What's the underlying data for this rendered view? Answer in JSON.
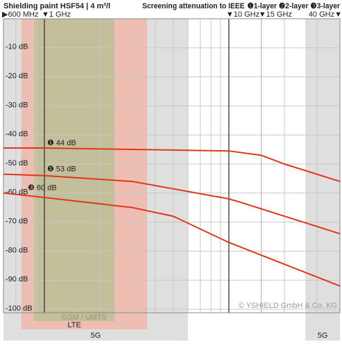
{
  "chart_data": {
    "type": "line",
    "title": "Shielding paint HSF54 | 4 m²/l",
    "legend_title": "Screening attenuation to IEEE",
    "log_x": true,
    "grid": true,
    "xlim": [
      0.6,
      40
    ],
    "ylim": [
      -100,
      0
    ],
    "xticks": [
      {
        "value": 0.6,
        "label": "▶600 MHz"
      },
      {
        "value": 1,
        "label": "▼1 GHz"
      },
      {
        "value": 10,
        "label": "▼10 GHz"
      },
      {
        "value": 15,
        "label": "▼15 GHz"
      },
      {
        "value": 40,
        "label": "40 GHz▼"
      }
    ],
    "xgrid": [
      0.7,
      0.8,
      0.9,
      1,
      2,
      3,
      4,
      5,
      6,
      7,
      8,
      9,
      10,
      20,
      30
    ],
    "yticks": [
      {
        "value": -10,
        "label": "-10 dB"
      },
      {
        "value": -20,
        "label": "-20 dB"
      },
      {
        "value": -30,
        "label": "-30 dB"
      },
      {
        "value": -40,
        "label": "-40 dB"
      },
      {
        "value": -50,
        "label": "-50 dB"
      },
      {
        "value": -60,
        "label": "-60 dB"
      },
      {
        "value": -70,
        "label": "-70 dB"
      },
      {
        "value": -80,
        "label": "-80 dB"
      },
      {
        "value": -90,
        "label": "-90 dB"
      },
      {
        "value": -100,
        "label": "-100 dB"
      }
    ],
    "bands": [
      {
        "label": "5G",
        "range": [
          0.6,
          6
        ],
        "color": "#d4d4d4"
      },
      {
        "label": "5G",
        "range": [
          26,
          40
        ],
        "color": "#d4d4d4"
      },
      {
        "label": "GSM / UMTS",
        "range": [
          0.75,
          3.6
        ],
        "color": "#f3b3a3"
      },
      {
        "label": "LTE",
        "range": [
          0.88,
          2.4
        ],
        "color": "#b3bf92"
      }
    ],
    "series": [
      {
        "name": "❶1-layer",
        "color": "#e2361a",
        "x": [
          0.6,
          1,
          10,
          15,
          20,
          40
        ],
        "values": [
          -44.5,
          -44.5,
          -45.5,
          -47,
          -50,
          -56
        ],
        "annotation": "❶ 44 dB"
      },
      {
        "name": "❷2-layer",
        "color": "#e2361a",
        "x": [
          0.6,
          1,
          3,
          10,
          12,
          40
        ],
        "values": [
          -53.5,
          -54,
          -56,
          -62,
          -63.5,
          -74
        ],
        "annotation": "❷ 53 dB"
      },
      {
        "name": "❸3-layer",
        "color": "#e2361a",
        "x": [
          0.6,
          1,
          3,
          5,
          10,
          40
        ],
        "values": [
          -60,
          -61.5,
          -65,
          -68,
          -77,
          -92
        ],
        "annotation": "❸ 60 dB"
      }
    ],
    "copyright": "© YSHIELD GmbH & Co. KG"
  }
}
